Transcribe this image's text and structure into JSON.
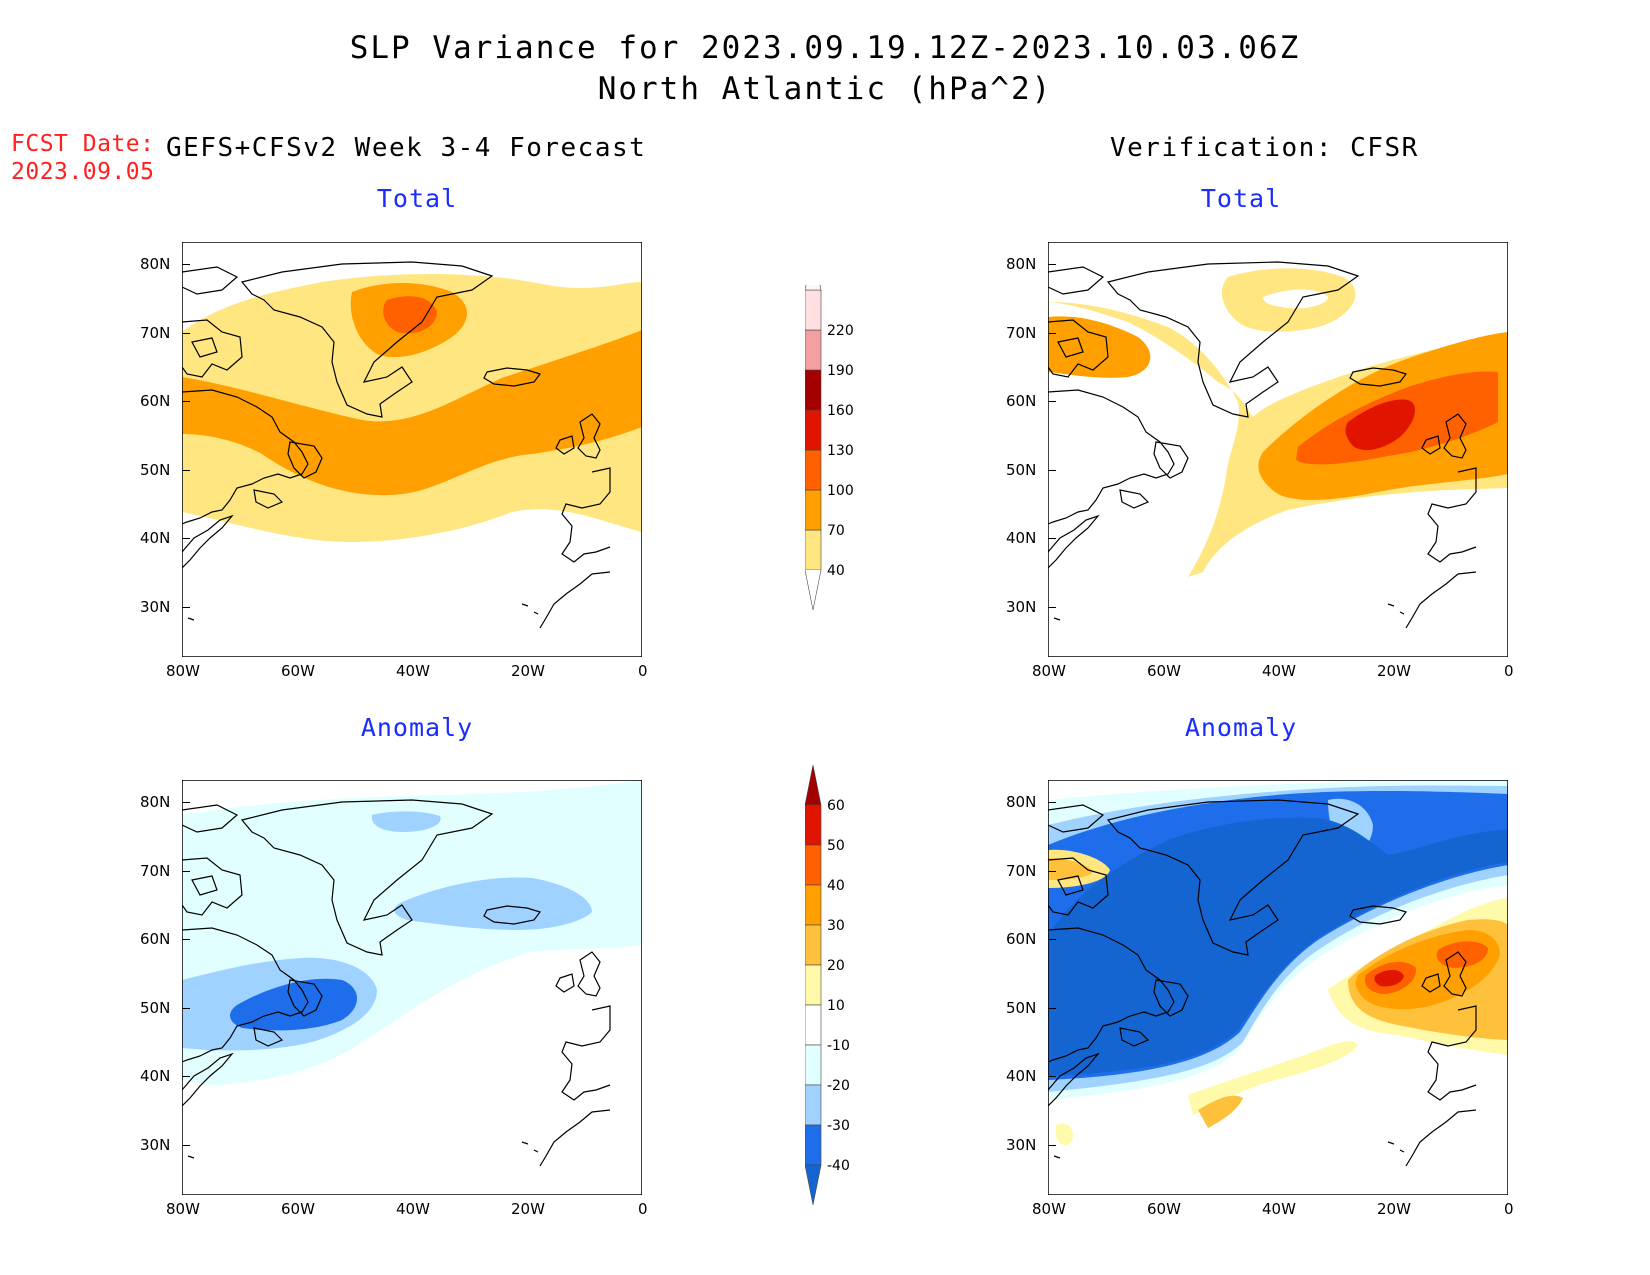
{
  "title": {
    "line1": "SLP Variance for 2023.09.19.12Z-2023.10.03.06Z",
    "line2": "North Atlantic (hPa^2)"
  },
  "fcst_date": {
    "label": "FCST Date:",
    "value": "2023.09.05"
  },
  "left_header": "GEFS+CFSv2 Week 3-4 Forecast",
  "right_header": "Verification: CFSR",
  "subtitles": {
    "total": "Total",
    "anomaly": "Anomaly"
  },
  "axes": {
    "lat_labels": [
      "80N",
      "70N",
      "60N",
      "50N",
      "40N",
      "30N"
    ],
    "lon_labels": [
      "80W",
      "60W",
      "40W",
      "20W",
      "0"
    ]
  },
  "colorbars": {
    "total": {
      "levels": [
        "40",
        "70",
        "100",
        "130",
        "160",
        "190",
        "220"
      ],
      "colors": [
        "#ffe680",
        "#ffa000",
        "#ff6000",
        "#e11400",
        "#a50000",
        "#f5a0a0",
        "#ffe0e0"
      ]
    },
    "anomaly": {
      "levels": [
        "-40",
        "-30",
        "-20",
        "-10",
        "10",
        "20",
        "30",
        "40",
        "50",
        "60"
      ],
      "colors": [
        "#1464d2",
        "#1e6eeb",
        "#a0d2ff",
        "#e1ffff",
        "#ffffff",
        "#fffaaa",
        "#ffc03c",
        "#ffa000",
        "#ff6000",
        "#e11400",
        "#a50000"
      ]
    }
  },
  "chart_data": [
    {
      "type": "heatmap",
      "title": "Total",
      "panel": "GEFS+CFSv2 Week 3-4 Forecast",
      "units": "hPa^2",
      "lon_range": [
        -80,
        0
      ],
      "lat_range": [
        25,
        85
      ],
      "max_region": {
        "lon": -40,
        "lat": 73,
        "level": "100-130"
      },
      "band_70_100": {
        "lat_range": [
          50,
          65
        ],
        "lon_range": [
          -80,
          0
        ]
      }
    },
    {
      "type": "heatmap",
      "title": "Total",
      "panel": "Verification: CFSR",
      "units": "hPa^2",
      "lon_range": [
        -80,
        0
      ],
      "lat_range": [
        25,
        85
      ],
      "max_region": {
        "lon": -20,
        "lat": 57,
        "level": "130-160"
      }
    },
    {
      "type": "heatmap",
      "title": "Anomaly",
      "panel": "GEFS+CFSv2 Week 3-4 Forecast",
      "units": "hPa^2",
      "lon_range": [
        -80,
        0
      ],
      "lat_range": [
        25,
        85
      ],
      "min_region": {
        "lon": -57,
        "lat": 52,
        "level": "-30 to -40"
      }
    },
    {
      "type": "heatmap",
      "title": "Anomaly",
      "panel": "Verification: CFSR",
      "units": "hPa^2",
      "lon_range": [
        -80,
        0
      ],
      "lat_range": [
        25,
        85
      ],
      "min_region": {
        "lon": -50,
        "lat": 65,
        "level": "< -40"
      },
      "max_region": {
        "lon": -20,
        "lat": 56,
        "level": "50-60"
      }
    }
  ]
}
